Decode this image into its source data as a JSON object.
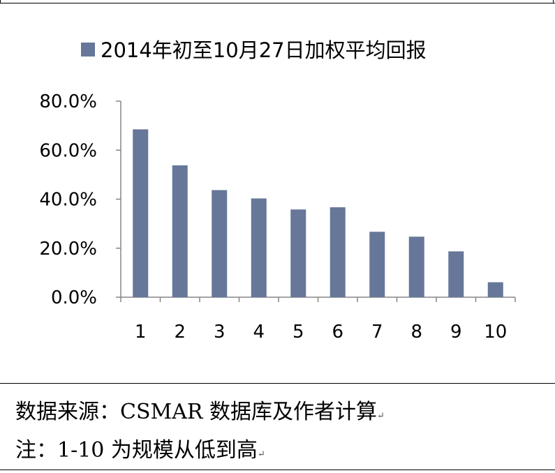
{
  "chart_data": {
    "type": "bar",
    "title": "",
    "legend": {
      "position": "top",
      "entries": [
        {
          "name": "2014年初至10月27日加权平均回报",
          "color": "#667799"
        }
      ]
    },
    "categories": [
      "1",
      "2",
      "3",
      "4",
      "5",
      "6",
      "7",
      "8",
      "9",
      "10"
    ],
    "series": [
      {
        "name": "2014年初至10月27日加权平均回报",
        "values": [
          68.5,
          53.8,
          43.7,
          40.3,
          35.8,
          36.7,
          26.7,
          24.7,
          18.7,
          6.1
        ]
      }
    ],
    "y_unit": "%",
    "ylim": [
      0,
      80
    ],
    "yticks": [
      "0.0%",
      "20.0%",
      "40.0%",
      "60.0%",
      "80.0%"
    ],
    "grid": false,
    "bar_color": "#667799"
  },
  "footnotes": {
    "source": "数据来源：CSMAR 数据库及作者计算",
    "note": "注：1-10 为规模从低到高",
    "paragraph_mark": "↵"
  }
}
